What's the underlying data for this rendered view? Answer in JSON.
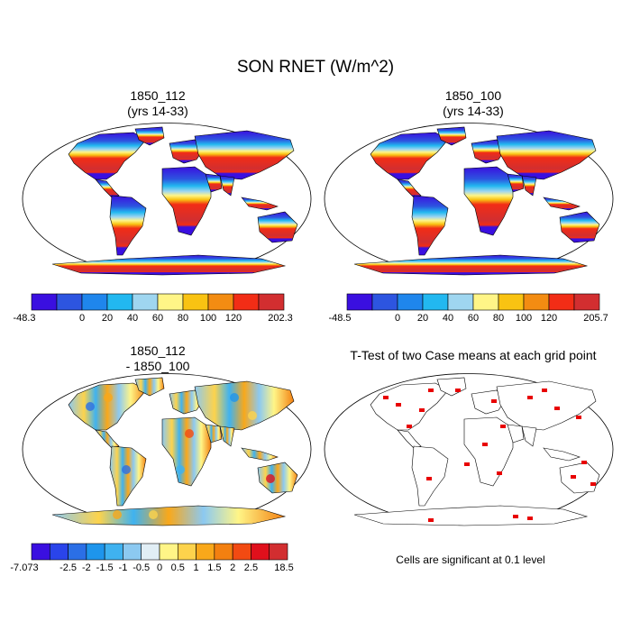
{
  "main_title": "SON RNET (W/m^2)",
  "panels": [
    {
      "title_line1": "1850_112",
      "title_line2": "(yrs 14-33)"
    },
    {
      "title_line1": "1850_100",
      "title_line2": "(yrs 14-33)"
    },
    {
      "title_line1": "1850_112",
      "title_line2": "- 1850_100"
    },
    {
      "title_line1": "T-Test of two Case means at each grid point",
      "title_line2": ""
    }
  ],
  "colorbars": [
    {
      "colors": [
        "#3a0fe0",
        "#2d55e0",
        "#1f86ec",
        "#22b8f0",
        "#9fd6f0",
        "#fff587",
        "#f9c312",
        "#f38c12",
        "#f22d16",
        "#d22e30"
      ],
      "labels": [
        "-48.3",
        "0",
        "20",
        "40",
        "60",
        "80",
        "100",
        "120",
        "202.3"
      ]
    },
    {
      "colors": [
        "#3a0fe0",
        "#2d55e0",
        "#1f86ec",
        "#22b8f0",
        "#9fd6f0",
        "#fff587",
        "#f9c312",
        "#f38c12",
        "#f22d16",
        "#d22e30"
      ],
      "labels": [
        "-48.5",
        "0",
        "20",
        "40",
        "60",
        "80",
        "100",
        "120",
        "205.7"
      ]
    },
    {
      "colors": [
        "#3a0fe0",
        "#2a44ea",
        "#2b6fe6",
        "#1e95ec",
        "#3fb2f0",
        "#8cc9f1",
        "#e1eef5",
        "#fff587",
        "#fdd34c",
        "#f9a81a",
        "#f38010",
        "#f24a12",
        "#e0101c",
        "#d22e30"
      ],
      "labels": [
        "-7.073",
        "-2.5",
        "-2",
        "-1.5",
        "-1",
        "-0.5",
        "0",
        "0.5",
        "1",
        "1.5",
        "2",
        "2.5",
        "18.5"
      ]
    }
  ],
  "ttest_note": "Cells are significant at 0.1 level",
  "ttest_color": "#e80000"
}
